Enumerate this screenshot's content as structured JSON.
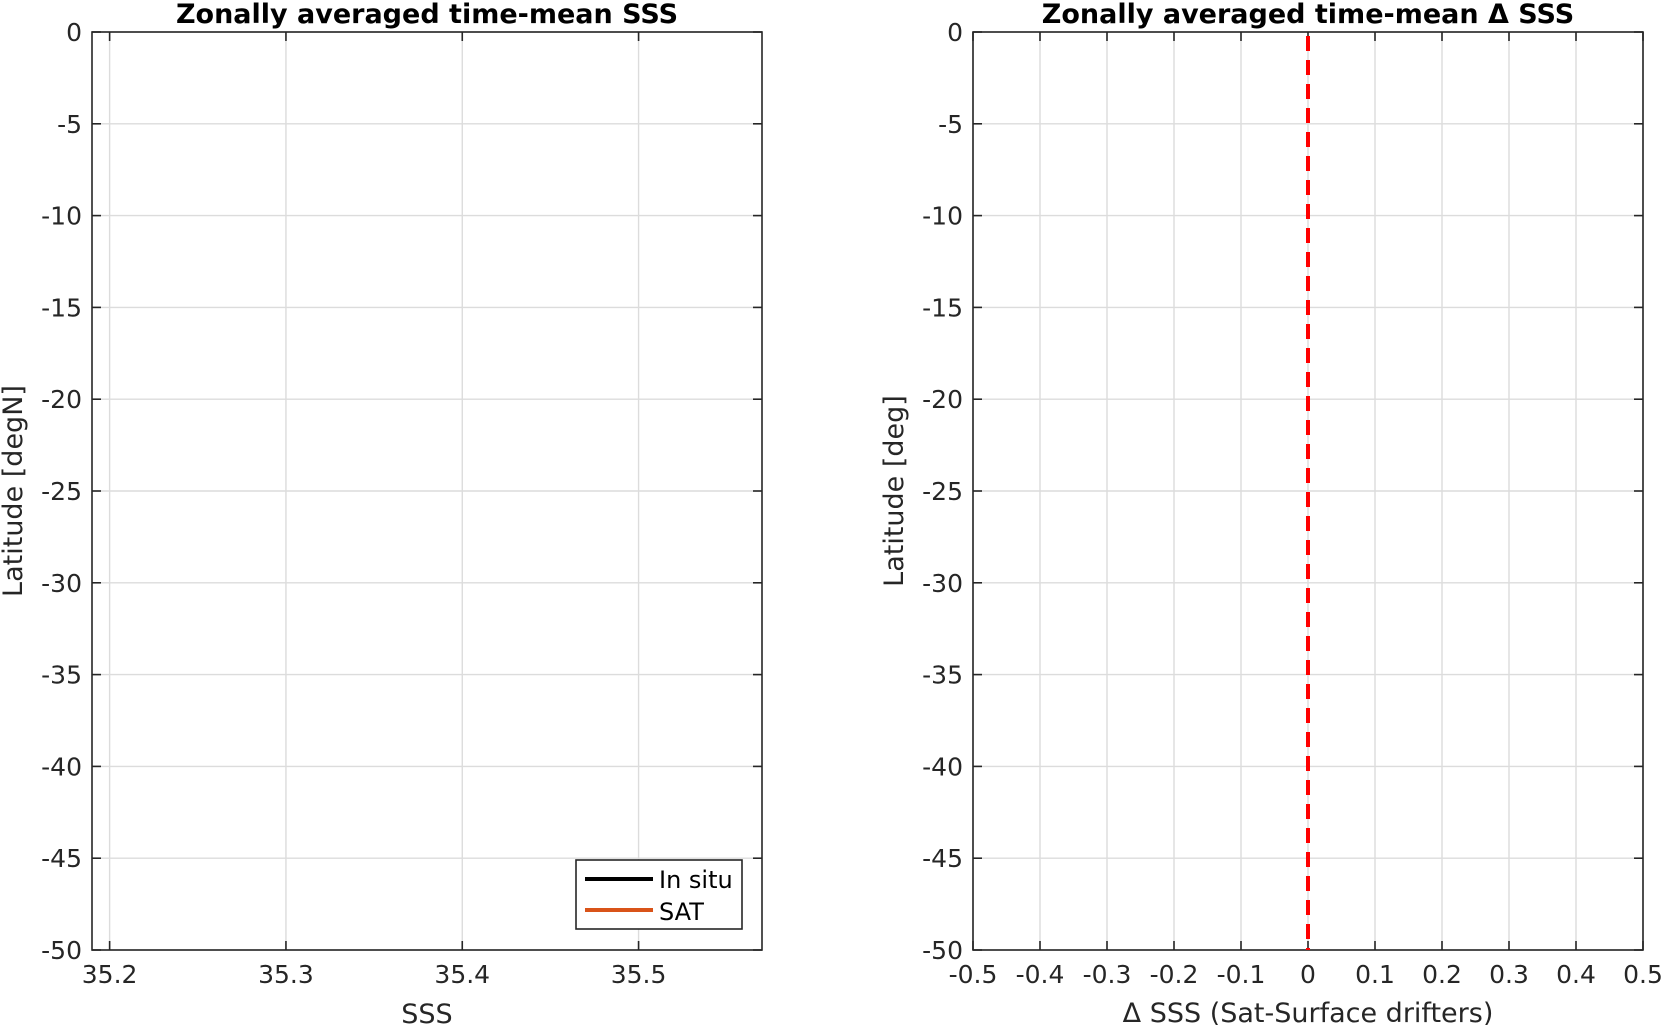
{
  "chart_data": [
    {
      "type": "line",
      "title": "Zonally averaged time-mean SSS",
      "xlabel": "SSS",
      "ylabel": "Latitude [degN]",
      "xlim": [
        35.19,
        35.57
      ],
      "ylim": [
        -50,
        0
      ],
      "x_ticks": [
        "35.2",
        "35.3",
        "35.4",
        "35.5"
      ],
      "y_ticks": [
        "0",
        "-5",
        "-10",
        "-15",
        "-20",
        "-25",
        "-30",
        "-35",
        "-40",
        "-45",
        "-50"
      ],
      "grid": true,
      "legend_position": "bottom-right",
      "series": [
        {
          "name": "In situ",
          "color": "#000000",
          "x": [],
          "y": []
        },
        {
          "name": "SAT",
          "color": "#d95319",
          "x": [],
          "y": []
        }
      ]
    },
    {
      "type": "line",
      "title": "Zonally averaged time-mean Δ SSS",
      "xlabel": "Δ SSS (Sat-Surface drifters)",
      "ylabel": "Latitude [deg]",
      "xlim": [
        -0.5,
        0.5
      ],
      "ylim": [
        -50,
        0
      ],
      "x_ticks": [
        "-0.5",
        "-0.4",
        "-0.3",
        "-0.2",
        "-0.1",
        "0",
        "0.1",
        "0.2",
        "0.3",
        "0.4",
        "0.5"
      ],
      "y_ticks": [
        "0",
        "-5",
        "-10",
        "-15",
        "-20",
        "-25",
        "-30",
        "-35",
        "-40",
        "-45",
        "-50"
      ],
      "grid": true,
      "reference_line": {
        "x": 0,
        "style": "dashed",
        "color": "#ff0000"
      }
    }
  ]
}
